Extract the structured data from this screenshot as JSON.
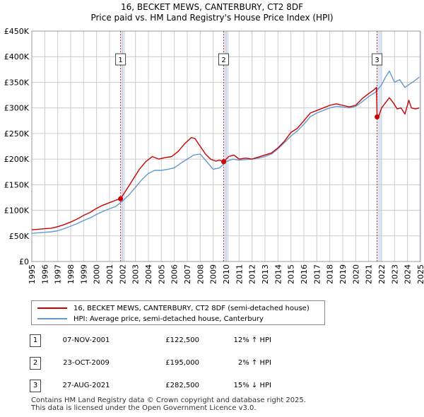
{
  "title": {
    "line1": "16, BECKET MEWS, CANTERBURY, CT2 8DF",
    "line2": "Price paid vs. HM Land Registry's House Price Index (HPI)"
  },
  "colors": {
    "price_line": "#cc0000",
    "hpi_line": "#6699cc",
    "shade": "#dde6f4",
    "grid": "#cccccc",
    "marker_line": "#cc3333"
  },
  "legend": {
    "price_label": "16, BECKET MEWS, CANTERBURY, CT2 8DF (semi-detached house)",
    "hpi_label": "HPI: Average price, semi-detached house, Canterbury"
  },
  "sales": [
    {
      "num": "1",
      "date": "07-NOV-2001",
      "price": "£122,500",
      "hpi": "12% ↑ HPI"
    },
    {
      "num": "2",
      "date": "23-OCT-2009",
      "price": "£195,000",
      "hpi": "2% ↑ HPI"
    },
    {
      "num": "3",
      "date": "27-AUG-2021",
      "price": "£282,500",
      "hpi": "15% ↓ HPI"
    }
  ],
  "footer": {
    "line1": "Contains HM Land Registry data © Crown copyright and database right 2025.",
    "line2": "This data is licensed under the Open Government Licence v3.0."
  },
  "chart_data": {
    "type": "line",
    "title": "16, BECKET MEWS, CANTERBURY, CT2 8DF — Price paid vs. HM Land Registry's House Price Index (HPI)",
    "xlabel": "",
    "ylabel": "",
    "xlim": [
      1995,
      2025
    ],
    "ylim": [
      0,
      450000
    ],
    "y_ticks": [
      0,
      50000,
      100000,
      150000,
      200000,
      250000,
      300000,
      350000,
      400000,
      450000
    ],
    "y_tick_labels": [
      "£0",
      "£50K",
      "£100K",
      "£150K",
      "£200K",
      "£250K",
      "£300K",
      "£350K",
      "£400K",
      "£450K"
    ],
    "x_ticks": [
      1995,
      1996,
      1997,
      1998,
      1999,
      2000,
      2001,
      2002,
      2003,
      2004,
      2005,
      2006,
      2007,
      2008,
      2009,
      2010,
      2011,
      2012,
      2013,
      2014,
      2015,
      2016,
      2017,
      2018,
      2019,
      2020,
      2021,
      2022,
      2023,
      2024,
      2025
    ],
    "grid": true,
    "shaded_periods": [
      [
        2001.85,
        2002.2
      ],
      [
        2009.8,
        2010.2
      ],
      [
        2021.65,
        2022.0
      ],
      [
        2024.9,
        2025.0
      ]
    ],
    "sale_markers": [
      {
        "label": "1",
        "x": 2001.85,
        "y": 122500
      },
      {
        "label": "2",
        "x": 2009.81,
        "y": 195000
      },
      {
        "label": "3",
        "x": 2021.65,
        "y": 282500
      }
    ],
    "series": [
      {
        "name": "16, BECKET MEWS, CANTERBURY, CT2 8DF (semi-detached house)",
        "x": [
          1995,
          1995.5,
          1996,
          1996.5,
          1997,
          1997.5,
          1998,
          1998.5,
          1999,
          1999.5,
          2000,
          2000.5,
          2001,
          2001.5,
          2001.85,
          2002.3,
          2002.8,
          2003.3,
          2003.8,
          2004.3,
          2004.8,
          2005.3,
          2005.8,
          2006.3,
          2006.8,
          2007.3,
          2007.6,
          2008.0,
          2008.4,
          2008.8,
          2009.2,
          2009.5,
          2009.81,
          2010.2,
          2010.6,
          2011.0,
          2011.5,
          2012.0,
          2012.5,
          2013.0,
          2013.5,
          2014.0,
          2014.5,
          2015.0,
          2015.5,
          2016.0,
          2016.5,
          2017.0,
          2017.5,
          2018.0,
          2018.5,
          2019.0,
          2019.5,
          2020.0,
          2020.5,
          2021.0,
          2021.4,
          2021.6,
          2021.65,
          2021.8,
          2022.0,
          2022.3,
          2022.6,
          2022.9,
          2023.2,
          2023.5,
          2023.8,
          2024.1,
          2024.3,
          2024.6,
          2024.9
        ],
        "values": [
          62000,
          63000,
          64000,
          65000,
          68000,
          72000,
          77000,
          83000,
          90000,
          96000,
          104000,
          110000,
          115000,
          120000,
          122500,
          140000,
          160000,
          180000,
          195000,
          205000,
          200000,
          203000,
          205000,
          215000,
          230000,
          242000,
          240000,
          225000,
          210000,
          200000,
          196000,
          198000,
          195000,
          205000,
          208000,
          200000,
          202000,
          200000,
          204000,
          208000,
          212000,
          222000,
          235000,
          252000,
          260000,
          275000,
          290000,
          295000,
          300000,
          305000,
          308000,
          305000,
          302000,
          305000,
          318000,
          328000,
          335000,
          340000,
          282500,
          285000,
          300000,
          310000,
          320000,
          310000,
          298000,
          300000,
          288000,
          315000,
          300000,
          298000,
          300000
        ]
      },
      {
        "name": "HPI: Average price, semi-detached house, Canterbury",
        "x": [
          1995,
          1995.5,
          1996,
          1996.5,
          1997,
          1997.5,
          1998,
          1998.5,
          1999,
          1999.5,
          2000,
          2000.5,
          2001,
          2001.5,
          2002,
          2002.5,
          2003,
          2003.5,
          2004,
          2004.5,
          2005,
          2005.5,
          2006,
          2006.5,
          2007,
          2007.5,
          2008,
          2008.5,
          2009,
          2009.5,
          2010,
          2010.5,
          2011,
          2011.5,
          2012,
          2012.5,
          2013,
          2013.5,
          2014,
          2014.5,
          2015,
          2015.5,
          2016,
          2016.5,
          2017,
          2017.5,
          2018,
          2018.5,
          2019,
          2019.5,
          2020,
          2020.5,
          2021,
          2021.5,
          2022,
          2022.3,
          2022.6,
          2023,
          2023.4,
          2023.8,
          2024.2,
          2024.5,
          2024.9
        ],
        "values": [
          55000,
          56000,
          57000,
          58000,
          60000,
          64000,
          69000,
          74000,
          80000,
          85000,
          92000,
          98000,
          103000,
          108000,
          118000,
          130000,
          145000,
          160000,
          172000,
          178000,
          178000,
          180000,
          183000,
          192000,
          200000,
          208000,
          210000,
          195000,
          180000,
          183000,
          195000,
          200000,
          198000,
          199000,
          200000,
          202000,
          205000,
          210000,
          220000,
          232000,
          245000,
          255000,
          268000,
          283000,
          290000,
          295000,
          300000,
          303000,
          302000,
          300000,
          303000,
          312000,
          322000,
          330000,
          345000,
          360000,
          372000,
          350000,
          355000,
          340000,
          347000,
          352000,
          360000
        ]
      }
    ]
  }
}
